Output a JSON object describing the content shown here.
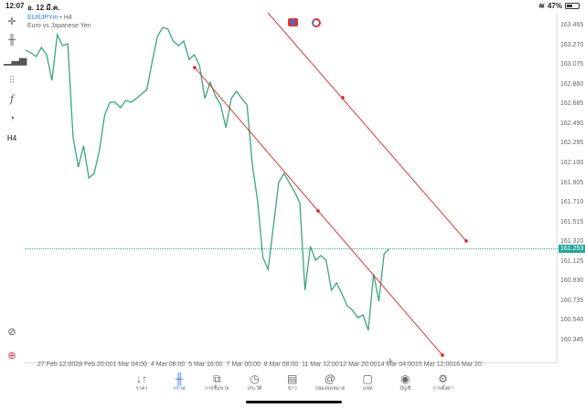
{
  "status_bar": {
    "time": "12:07",
    "date": "อ. 12 มี.ค.",
    "battery": "47%",
    "battery_level": 0.47
  },
  "symbol": {
    "name": "EURJPYm",
    "separator": "•",
    "timeframe": "H4",
    "description": "Euro vs Japanese Yen"
  },
  "toolbar": {
    "timeframe_label": "H4",
    "icons": [
      "crosshair-icon",
      "candlestick-icon",
      "bar-chart-icon",
      "indicators-icon",
      "function-icon",
      "objects-icon",
      "timeframe-icon"
    ]
  },
  "colors": {
    "line": "#3aa67a",
    "trendline": "#e02020",
    "price_tag": "#26a69a",
    "accent": "#2a7ae2"
  },
  "chart_data": {
    "type": "line",
    "y_ticks": [
      "163.465",
      "163.270",
      "163.075",
      "162.880",
      "162.685",
      "162.490",
      "162.295",
      "162.100",
      "161.905",
      "161.710",
      "161.515",
      "161.320",
      "161.125",
      "160.930",
      "160.735",
      "160.540",
      "160.345"
    ],
    "ylim": [
      160.2,
      163.6
    ],
    "x_ticks": [
      "27 Feb 12:00",
      "28 Feb 20:00",
      "1 Mar 04:00",
      "4 Mar 08:00",
      "5 Mar 16:00",
      "7 Mar 00:00",
      "8 Mar 08:00",
      "11 Mar 12:00",
      "12 Mar 20:00",
      "14 Mar 04:00",
      "15 Mar 12:00",
      "16 Mar 20:"
    ],
    "current_price": "161.253",
    "values": [
      163.221,
      163.194,
      163.158,
      163.248,
      163.176,
      162.922,
      163.375,
      163.266,
      163.284,
      162.362,
      162.063,
      162.271,
      161.955,
      162.0,
      162.226,
      162.579,
      162.705,
      162.705,
      162.651,
      162.723,
      162.705,
      162.742,
      162.787,
      162.832,
      163.103,
      163.356,
      163.447,
      163.429,
      163.311,
      163.266,
      163.311,
      163.13,
      163.176,
      163.067,
      162.742,
      162.904,
      162.769,
      162.678,
      162.452,
      162.742,
      162.814,
      162.742,
      162.678,
      162.09,
      161.729,
      161.168,
      161.05,
      161.476,
      161.91,
      162.0,
      161.91,
      161.819,
      161.711,
      160.843,
      161.277,
      161.141,
      161.186,
      161.141,
      160.843,
      160.915,
      160.806,
      160.689,
      160.644,
      160.571,
      160.598,
      160.445,
      161.005,
      160.734,
      161.204,
      161.253
    ],
    "trendlines": [
      {
        "start": 163.049,
        "mid": 161.629,
        "end": 160.2
      },
      {
        "start": 163.592,
        "mid": 162.751,
        "end": 161.331
      }
    ],
    "grid": false
  },
  "nav": [
    {
      "label": "ราคา",
      "icon": "↓↑",
      "name": "quotes"
    },
    {
      "label": "กราฟ",
      "icon": "╫",
      "name": "chart",
      "active": true
    },
    {
      "label": "การซื้อขาย",
      "icon": "⧉",
      "name": "trade"
    },
    {
      "label": "ประวัติ",
      "icon": "◷",
      "name": "history"
    },
    {
      "label": "ข่าว",
      "icon": "▤",
      "name": "news"
    },
    {
      "label": "กล่องจดหมาย",
      "icon": "@",
      "name": "mailbox"
    },
    {
      "label": "แชท",
      "icon": "▢",
      "name": "chat"
    },
    {
      "label": "บัญชี",
      "icon": "◉",
      "name": "account"
    },
    {
      "label": "การตั้งค่า",
      "icon": "⚙",
      "name": "settings"
    }
  ]
}
